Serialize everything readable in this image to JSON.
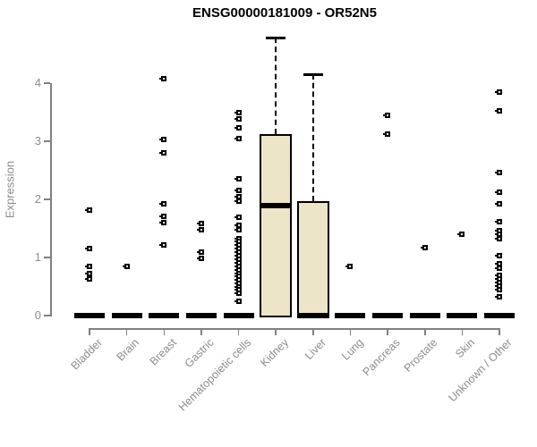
{
  "chart_data": {
    "type": "boxplot",
    "title": "ENSG00000181009 - OR52N5",
    "ylabel": "Expression",
    "xlabel": "",
    "ylim": [
      0,
      4
    ],
    "yticks": [
      0,
      1,
      2,
      3,
      4
    ],
    "grid": false,
    "legend": false,
    "box_fill_color": "#ECE5C8",
    "box_stroke_color": "#000000",
    "axis_color": "#808080",
    "label_color": "#8c8c8c",
    "outlier_glyph": "open-square",
    "categories": [
      {
        "label": "Bladder",
        "stats": {
          "lo": 0,
          "q1": 0,
          "median": 0,
          "q3": 0,
          "hi": 0
        },
        "outliers": [
          1.82,
          1.15,
          0.85,
          0.73,
          0.63
        ]
      },
      {
        "label": "Brain",
        "stats": {
          "lo": 0,
          "q1": 0,
          "median": 0,
          "q3": 0,
          "hi": 0
        },
        "outliers": [
          0.85
        ]
      },
      {
        "label": "Breast",
        "stats": {
          "lo": 0,
          "q1": 0,
          "median": 0,
          "q3": 0,
          "hi": 0
        },
        "outliers": [
          4.08,
          3.03,
          2.8,
          1.92,
          1.71,
          1.6,
          1.22
        ]
      },
      {
        "label": "Gastric",
        "stats": {
          "lo": 0,
          "q1": 0,
          "median": 0,
          "q3": 0,
          "hi": 0
        },
        "outliers": [
          1.58,
          1.48,
          1.1,
          0.99
        ]
      },
      {
        "label": "Hematopoietic cells",
        "stats": {
          "lo": 0,
          "q1": 0,
          "median": 0,
          "q3": 0,
          "hi": 0
        },
        "outliers": [
          3.5,
          3.38,
          3.23,
          3.05,
          2.35,
          2.15,
          2.05,
          1.97,
          1.7,
          1.55,
          1.48,
          1.33,
          1.27,
          1.21,
          1.15,
          1.09,
          1.03,
          0.97,
          0.91,
          0.85,
          0.79,
          0.73,
          0.67,
          0.61,
          0.55,
          0.49,
          0.44,
          0.38,
          0.25
        ]
      },
      {
        "label": "Kidney",
        "stats": {
          "lo": 0,
          "q1": 0,
          "median": 1.89,
          "q3": 3.12,
          "hi": 4.78
        },
        "outliers": []
      },
      {
        "label": "Liver",
        "stats": {
          "lo": 0,
          "q1": 0,
          "median": 0,
          "q3": 1.97,
          "hi": 4.15
        },
        "outliers": []
      },
      {
        "label": "Lung",
        "stats": {
          "lo": 0,
          "q1": 0,
          "median": 0,
          "q3": 0,
          "hi": 0
        },
        "outliers": [
          0.84
        ]
      },
      {
        "label": "Pancreas",
        "stats": {
          "lo": 0,
          "q1": 0,
          "median": 0,
          "q3": 0,
          "hi": 0
        },
        "outliers": [
          3.45,
          3.12
        ]
      },
      {
        "label": "Prostate",
        "stats": {
          "lo": 0,
          "q1": 0,
          "median": 0,
          "q3": 0,
          "hi": 0
        },
        "outliers": [
          1.17
        ]
      },
      {
        "label": "Skin",
        "stats": {
          "lo": 0,
          "q1": 0,
          "median": 0,
          "q3": 0,
          "hi": 0
        },
        "outliers": [
          1.4
        ]
      },
      {
        "label": "Unknown / Other",
        "stats": {
          "lo": 0,
          "q1": 0,
          "median": 0,
          "q3": 0,
          "hi": 0
        },
        "outliers": [
          3.84,
          3.53,
          2.46,
          2.12,
          1.92,
          1.61,
          1.46,
          1.4,
          1.33,
          1.03,
          0.89,
          0.82,
          0.69,
          0.63,
          0.57,
          0.51,
          0.45,
          0.33
        ]
      }
    ]
  }
}
